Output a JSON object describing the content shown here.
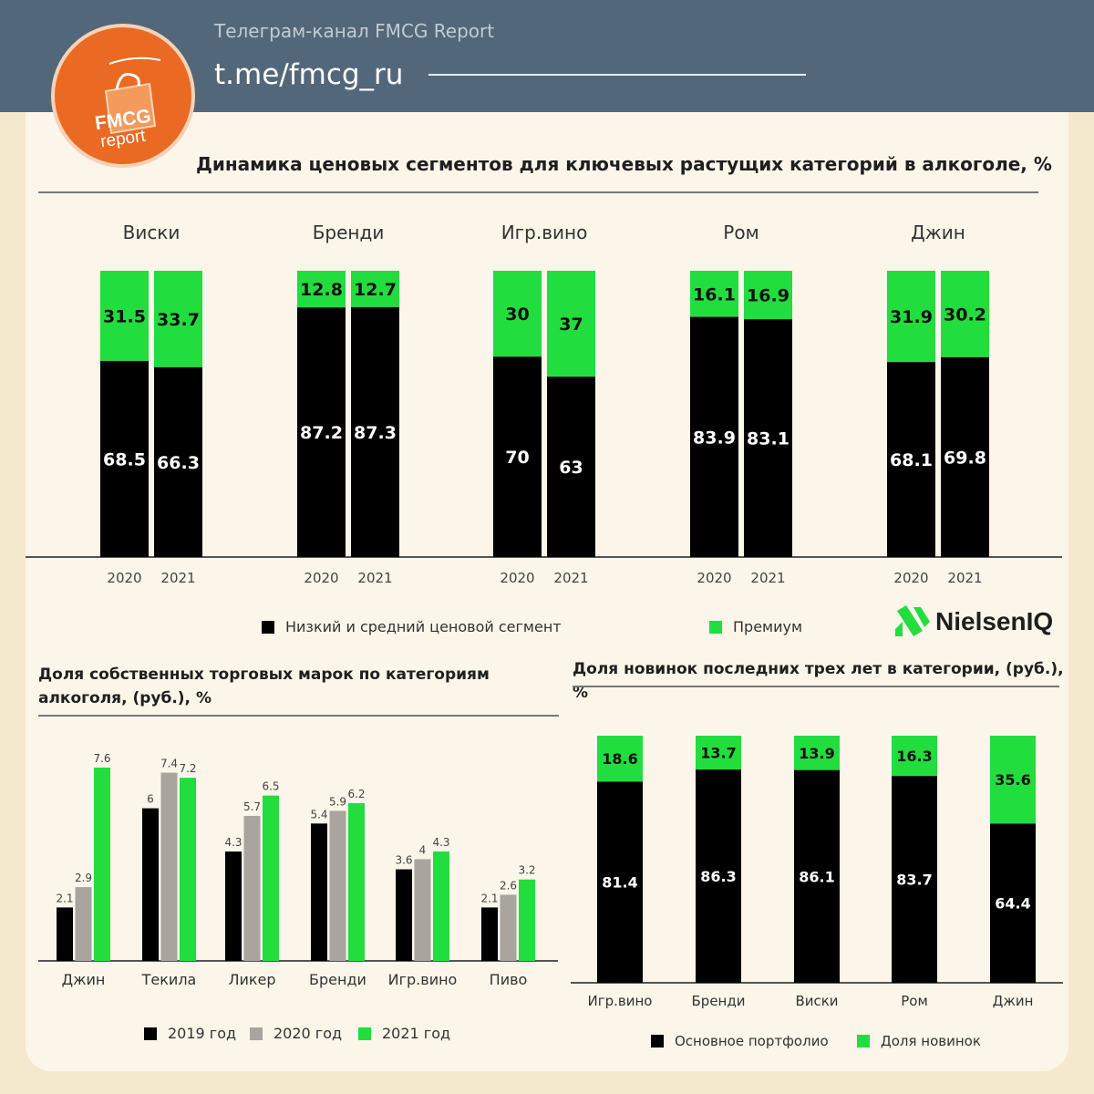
{
  "header": {
    "channel_name": "Телеграм-канал FMCG Report",
    "channel_link": "t.me/fmcg_ru",
    "logo_line1": "FMCG",
    "logo_line2": "report"
  },
  "colors": {
    "low_mid": "#000000",
    "premium": "#22dd3e",
    "gray": "#aaa49f",
    "header_bg": "#52687a",
    "logo": "#ea6a23"
  },
  "brand": {
    "name": "NielsenIQ"
  },
  "chart_data": [
    {
      "type": "bar",
      "stacked": true,
      "title": "Динамика ценовых сегментов для ключевых растущих категорий в алкоголе, %",
      "groups": [
        "Виски",
        "Бренди",
        "Игр.вино",
        "Ром",
        "Джин"
      ],
      "years": [
        "2020",
        "2021"
      ],
      "series": [
        {
          "name": "Низкий и средний ценовой сегмент",
          "values": [
            [
              68.5,
              66.3
            ],
            [
              87.2,
              87.3
            ],
            [
              70,
              63
            ],
            [
              83.9,
              83.1
            ],
            [
              68.1,
              69.8
            ]
          ]
        },
        {
          "name": "Премиум",
          "values": [
            [
              31.5,
              33.7
            ],
            [
              12.8,
              12.7
            ],
            [
              30,
              37
            ],
            [
              16.1,
              16.9
            ],
            [
              31.9,
              30.2
            ]
          ]
        }
      ],
      "ylim": [
        0,
        100
      ],
      "legend": "bottom"
    },
    {
      "type": "bar",
      "title": "Доля собственных торговых марок по категориям алкоголя, (руб.), %",
      "categories": [
        "Джин",
        "Текила",
        "Ликер",
        "Бренди",
        "Игр.вино",
        "Пиво"
      ],
      "series": [
        {
          "name": "2019 год",
          "values": [
            2.1,
            6,
            4.3,
            5.4,
            3.6,
            2.1
          ]
        },
        {
          "name": "2020 год",
          "values": [
            2.9,
            7.4,
            5.7,
            5.9,
            4,
            2.6
          ]
        },
        {
          "name": "2021 год",
          "values": [
            7.6,
            7.2,
            6.5,
            6.2,
            4.3,
            3.2
          ]
        }
      ],
      "ylim": [
        0,
        8
      ],
      "legend": "bottom"
    },
    {
      "type": "bar",
      "stacked": true,
      "title": "Доля новинок последних трех лет в категории, (руб.), %",
      "categories": [
        "Игр.вино",
        "Бренди",
        "Виски",
        "Ром",
        "Джин"
      ],
      "series": [
        {
          "name": "Основное портфолио",
          "values": [
            81.4,
            86.3,
            86.1,
            83.7,
            64.4
          ]
        },
        {
          "name": "Доля новинок",
          "values": [
            18.6,
            13.7,
            13.9,
            16.3,
            35.6
          ]
        }
      ],
      "ylim": [
        0,
        100
      ],
      "legend": "bottom"
    }
  ]
}
